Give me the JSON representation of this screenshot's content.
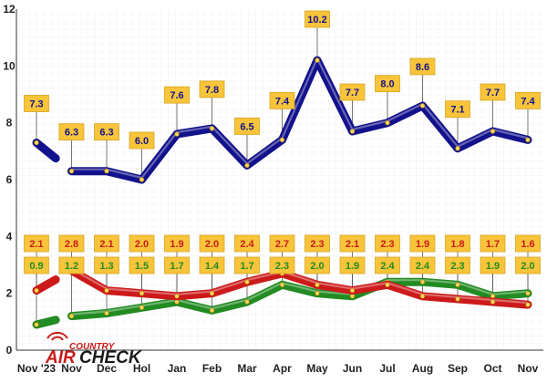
{
  "chart_data": {
    "type": "line",
    "categories": [
      "Nov '23",
      "Nov",
      "Dec",
      "Hol",
      "Jan",
      "Feb",
      "Mar",
      "Apr",
      "May",
      "Jun",
      "Jul",
      "Aug",
      "Sep",
      "Oct",
      "Nov"
    ],
    "ylim": [
      0,
      12
    ],
    "yticks": [
      "0",
      "2",
      "4",
      "6",
      "8",
      "10",
      "12"
    ],
    "grid": true,
    "series": [
      {
        "name": "Blue series",
        "color": "#12128c",
        "values": [
          7.3,
          6.3,
          6.3,
          6.0,
          7.6,
          7.8,
          6.5,
          7.4,
          10.2,
          7.7,
          8.0,
          8.6,
          7.1,
          7.7,
          7.4
        ],
        "labels": [
          "7.3",
          "6.3",
          "6.3",
          "6.0",
          "7.6",
          "7.8",
          "6.5",
          "7.4",
          "10.2",
          "7.7",
          "8.0",
          "8.6",
          "7.1",
          "7.7",
          "7.4"
        ]
      },
      {
        "name": "Red series",
        "color": "#cc1a1a",
        "values": [
          2.1,
          2.8,
          2.1,
          2.0,
          1.9,
          2.0,
          2.4,
          2.7,
          2.3,
          2.1,
          2.3,
          1.9,
          1.8,
          1.7,
          1.6
        ],
        "labels": [
          "2.1",
          "2.8",
          "2.1",
          "2.0",
          "1.9",
          "2.0",
          "2.4",
          "2.7",
          "2.3",
          "2.1",
          "2.3",
          "1.9",
          "1.8",
          "1.7",
          "1.6"
        ]
      },
      {
        "name": "Green series",
        "color": "#228b22",
        "values": [
          0.9,
          1.2,
          1.3,
          1.5,
          1.7,
          1.4,
          1.7,
          2.3,
          2.0,
          1.9,
          2.4,
          2.4,
          2.3,
          1.9,
          2.0
        ],
        "labels": [
          "0.9",
          "1.2",
          "1.3",
          "1.5",
          "1.7",
          "1.4",
          "1.7",
          "2.3",
          "2.0",
          "1.9",
          "2.4",
          "2.4",
          "2.3",
          "1.9",
          "2.0"
        ]
      }
    ]
  },
  "logo": {
    "line1": "COUNTRY",
    "line2_a": "AIR",
    "line2_b": "CHECK"
  }
}
